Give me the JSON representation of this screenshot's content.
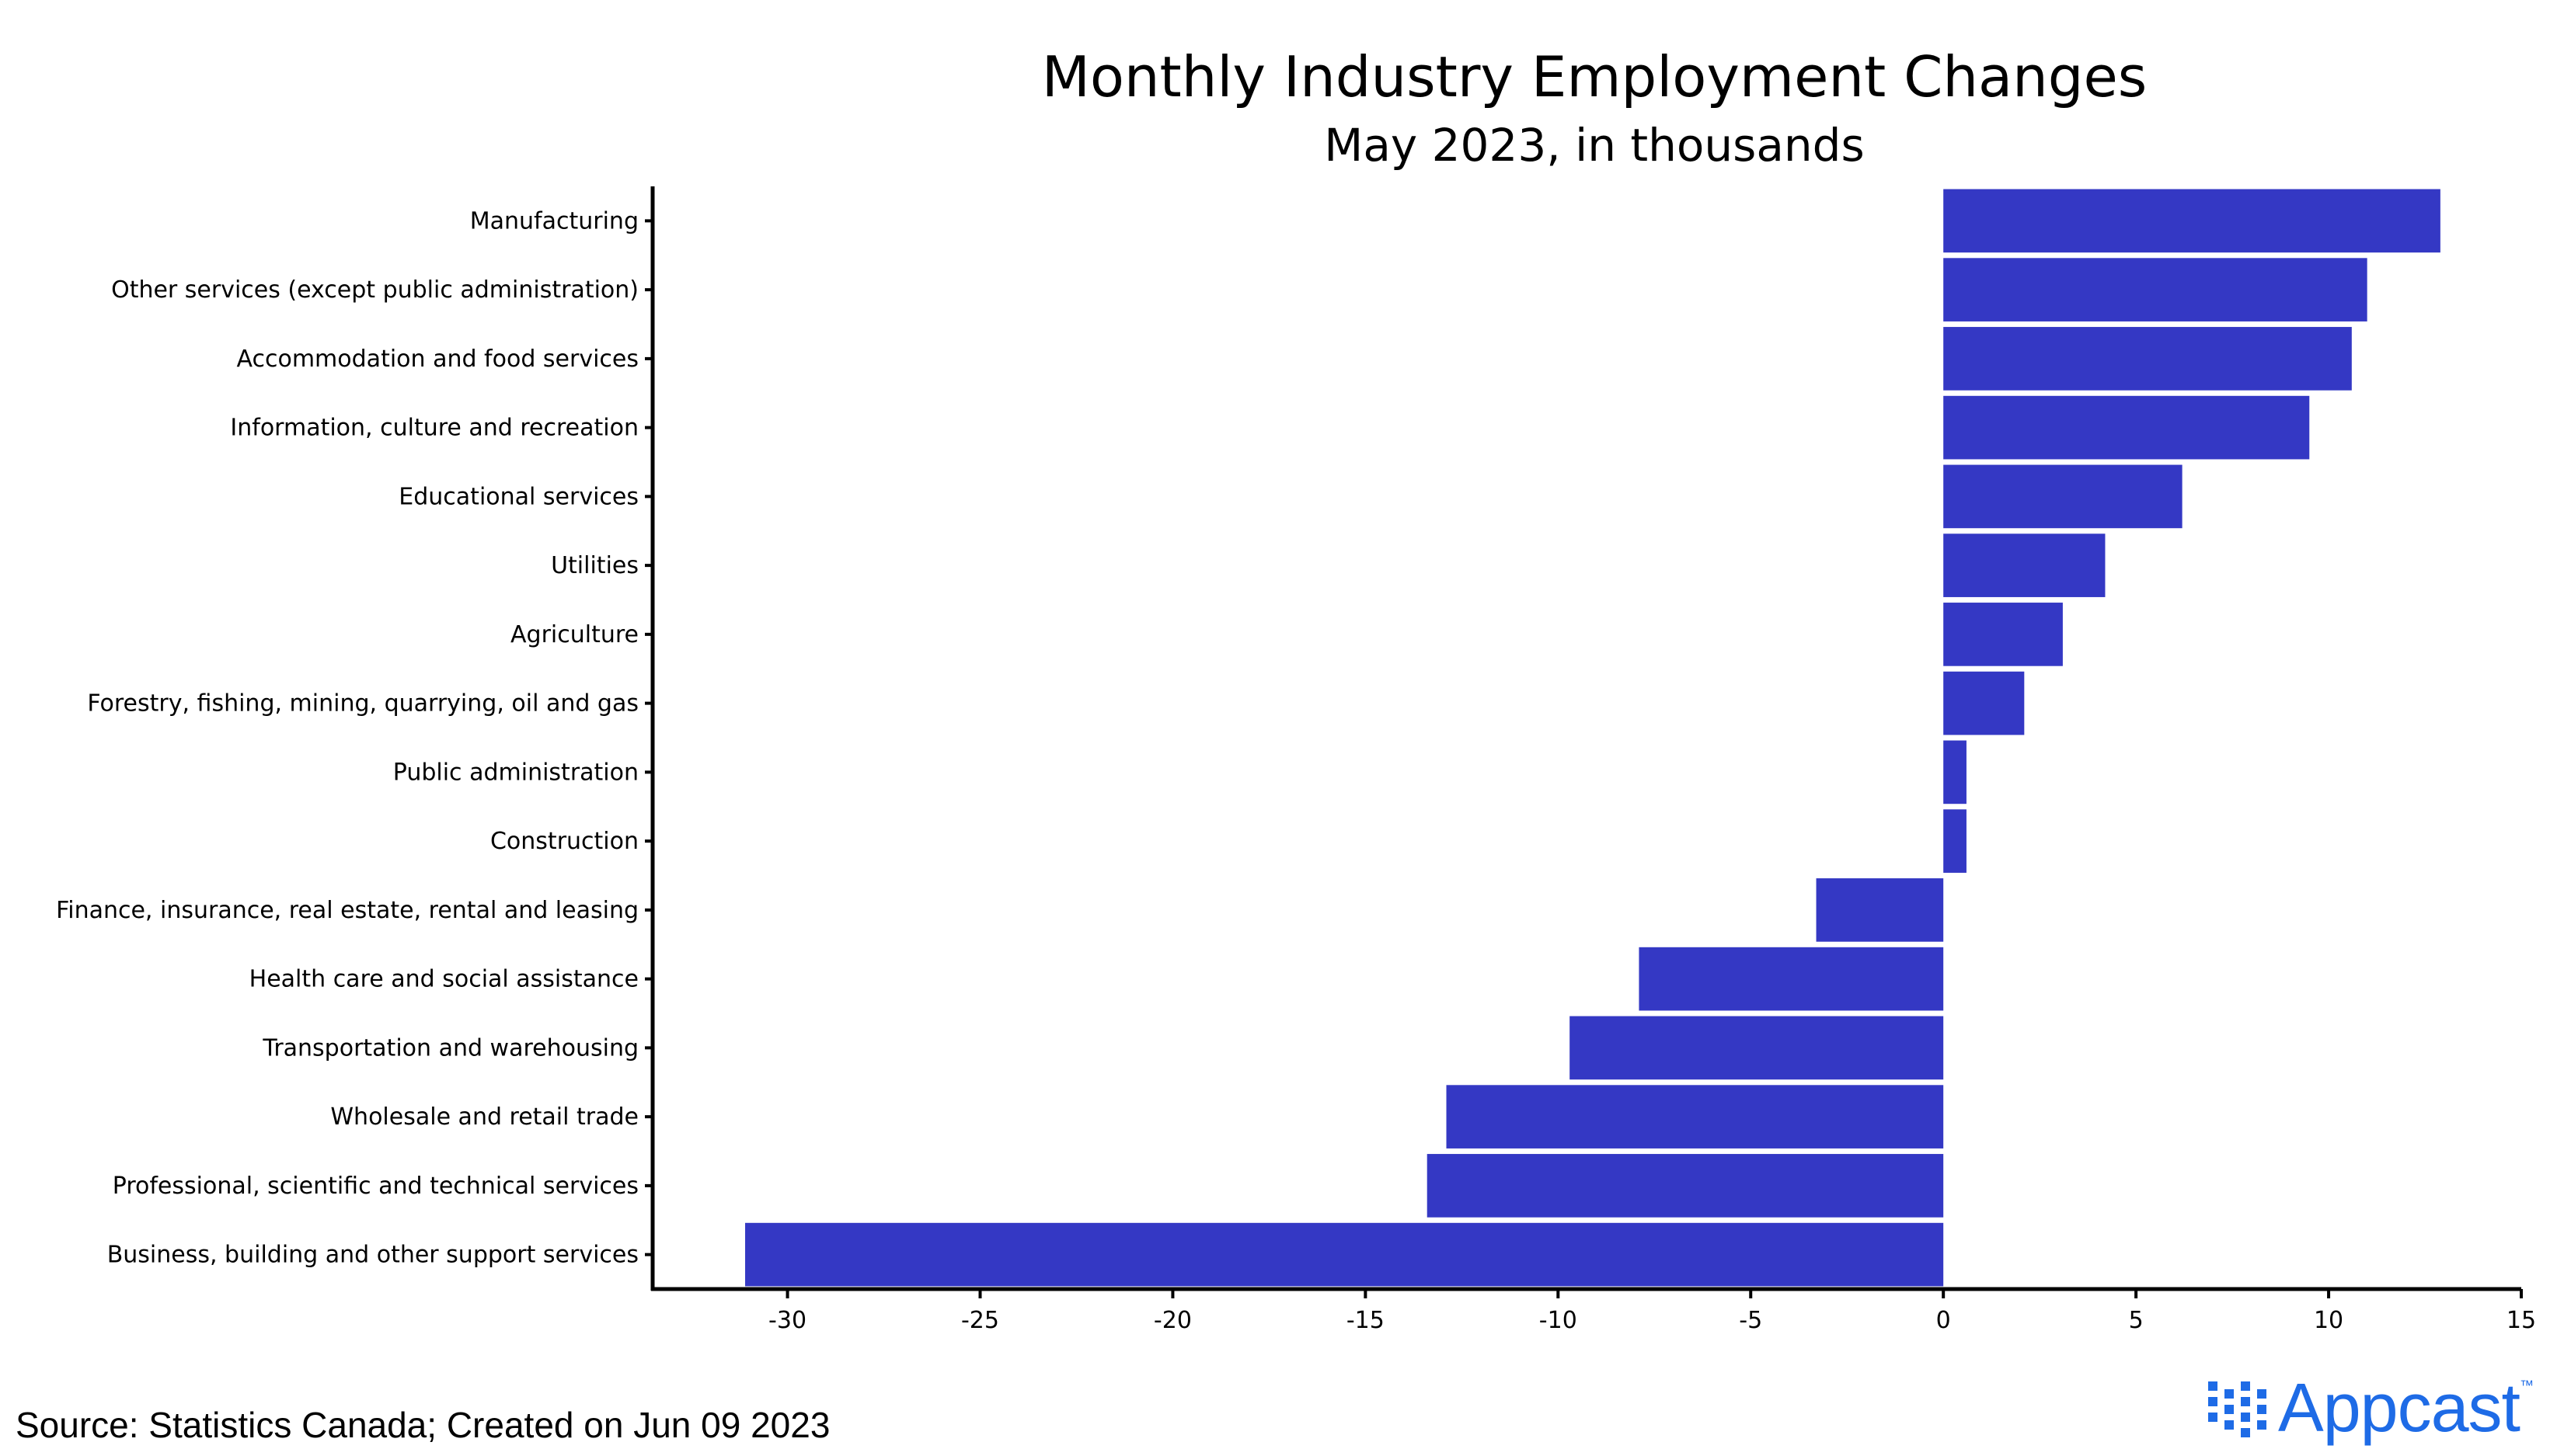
{
  "chart_data": {
    "type": "bar",
    "orientation": "horizontal",
    "title": "Monthly Industry Employment Changes",
    "subtitle": "May 2023, in thousands",
    "categories": [
      "Manufacturing",
      "Other services (except public administration)",
      "Accommodation and food services",
      "Information, culture and recreation",
      "Educational services",
      "Utilities",
      "Agriculture",
      "Forestry, fishing, mining, quarrying, oil and gas",
      "Public administration",
      "Construction",
      "Finance, insurance, real estate, rental and leasing",
      "Health care and social assistance",
      "Transportation and warehousing",
      "Wholesale and retail trade",
      "Professional, scientific and technical services",
      "Business, building and other support services"
    ],
    "values": [
      12.9,
      11.0,
      10.6,
      9.5,
      6.2,
      4.2,
      3.1,
      2.1,
      0.6,
      0.6,
      -3.3,
      -7.9,
      -9.7,
      -12.9,
      -13.4,
      -31.1
    ],
    "xlim": [
      -33.5,
      15
    ],
    "xticks": [
      "-30",
      "-25",
      "-20",
      "-15",
      "-10",
      "-5",
      "0",
      "5",
      "10",
      "15"
    ],
    "bar_color": "#3438c4",
    "grid": false
  },
  "source": "Source: Statistics Canada; Created on Jun 09 2023",
  "logo": {
    "text": "Appcast",
    "tm": "™",
    "color": "#1e6be6"
  }
}
